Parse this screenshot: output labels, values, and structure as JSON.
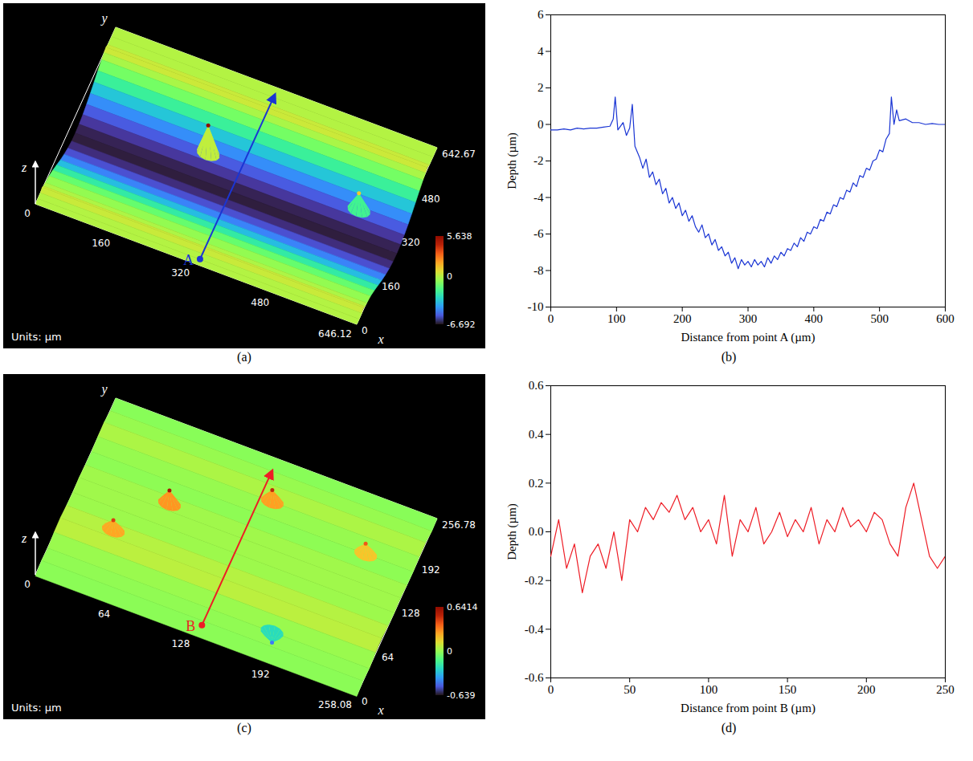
{
  "chart_data": [
    {
      "type": "surface3d",
      "label": "(a)",
      "xlabel": "x",
      "ylabel": "y",
      "zlabel": "z",
      "xlim": [
        0,
        646.12
      ],
      "xticks": [
        0,
        160,
        320,
        480,
        646.12
      ],
      "ylim": [
        0,
        642.67
      ],
      "yticks": [
        0,
        160,
        320,
        480,
        642.67
      ],
      "units_text": "Units: µm",
      "colorbar": {
        "range": [
          -6.692,
          5.638
        ],
        "ticks": [
          5.638,
          0,
          -6.692
        ]
      },
      "surface_profile": {
        "y": [
          0,
          20,
          40,
          55,
          65,
          80,
          110,
          140,
          170,
          200,
          230,
          260,
          290,
          320,
          350,
          380,
          410,
          440,
          470,
          500,
          530,
          550,
          565,
          580,
          610,
          642.67
        ],
        "z": [
          0,
          -0.1,
          0,
          0.6,
          0,
          -0.3,
          -0.8,
          -1.8,
          -3.0,
          -4.2,
          -5.2,
          -6.0,
          -6.5,
          -6.6,
          -6.3,
          -5.8,
          -5.0,
          -4.0,
          -2.8,
          -1.6,
          -0.5,
          0.1,
          0.6,
          0,
          -0.1,
          0
        ]
      },
      "features": [
        {
          "x": 247,
          "y": 400,
          "z": 5.6
        },
        {
          "x": 550,
          "y": 400,
          "z": 1.2
        }
      ],
      "marker_point": {
        "name": "A",
        "x": 326,
        "y0": 20,
        "y1": 620,
        "color": "#1a35d4"
      }
    },
    {
      "type": "line",
      "label": "(b)",
      "xlabel": "Distance from point A (µm)",
      "ylabel": "Depth (µm)",
      "xlim": [
        0,
        600
      ],
      "xticks": [
        0,
        100,
        200,
        300,
        400,
        500,
        600
      ],
      "ylim": [
        -10,
        6
      ],
      "yticks": [
        -10,
        -8,
        -6,
        -4,
        -2,
        0,
        2,
        4,
        6
      ],
      "grid": false,
      "color": "#1a35d4",
      "x": [
        0,
        10,
        20,
        30,
        40,
        50,
        60,
        70,
        80,
        90,
        95,
        98,
        102,
        110,
        115,
        120,
        124,
        128,
        135,
        140,
        145,
        150,
        155,
        160,
        165,
        170,
        175,
        180,
        185,
        190,
        195,
        200,
        205,
        210,
        215,
        220,
        225,
        230,
        235,
        240,
        245,
        250,
        255,
        260,
        265,
        270,
        275,
        280,
        285,
        290,
        295,
        300,
        305,
        310,
        315,
        320,
        325,
        330,
        335,
        340,
        345,
        350,
        355,
        360,
        365,
        370,
        375,
        380,
        385,
        390,
        395,
        400,
        405,
        410,
        415,
        420,
        425,
        430,
        435,
        440,
        445,
        450,
        455,
        460,
        465,
        470,
        475,
        480,
        485,
        490,
        495,
        500,
        505,
        510,
        515,
        518,
        522,
        526,
        530,
        540,
        550,
        560,
        570,
        580,
        590,
        600
      ],
      "values": [
        -0.3,
        -0.3,
        -0.25,
        -0.3,
        -0.2,
        -0.25,
        -0.2,
        -0.2,
        -0.15,
        -0.1,
        0.3,
        1.5,
        -0.3,
        0.1,
        -0.6,
        -0.2,
        1.1,
        -1.2,
        -1.8,
        -2.4,
        -1.9,
        -2.9,
        -2.6,
        -3.3,
        -3.0,
        -3.8,
        -3.5,
        -4.3,
        -4.0,
        -4.6,
        -4.3,
        -5.0,
        -4.7,
        -5.3,
        -5.0,
        -5.6,
        -5.9,
        -5.5,
        -6.2,
        -6.0,
        -6.6,
        -6.3,
        -6.9,
        -6.7,
        -7.2,
        -7.0,
        -7.6,
        -7.3,
        -7.9,
        -7.4,
        -7.7,
        -7.5,
        -7.8,
        -7.4,
        -7.7,
        -7.5,
        -7.8,
        -7.3,
        -7.6,
        -7.2,
        -7.4,
        -7.0,
        -7.2,
        -6.8,
        -6.9,
        -6.5,
        -6.7,
        -6.2,
        -6.4,
        -5.9,
        -6.0,
        -5.6,
        -5.7,
        -5.2,
        -5.3,
        -4.8,
        -4.9,
        -4.4,
        -4.5,
        -4.0,
        -4.1,
        -3.6,
        -3.7,
        -3.2,
        -3.4,
        -2.8,
        -2.9,
        -2.4,
        -2.5,
        -2.0,
        -1.9,
        -1.4,
        -1.5,
        -0.8,
        -0.5,
        1.5,
        0.0,
        0.8,
        0.2,
        0.3,
        0.1,
        0.1,
        0.0,
        0.05,
        0.0,
        0.0
      ]
    },
    {
      "type": "surface3d",
      "label": "(c)",
      "xlabel": "x",
      "ylabel": "y",
      "zlabel": "z",
      "xlim": [
        0,
        258.08
      ],
      "xticks": [
        0,
        64,
        128,
        192,
        258.08
      ],
      "ylim": [
        0,
        256.78
      ],
      "yticks": [
        0,
        64,
        128,
        192,
        256.78
      ],
      "units_text": "Units: µm",
      "colorbar": {
        "range": [
          -0.639,
          0.6414
        ],
        "ticks": [
          0.6414,
          0,
          -0.639
        ]
      },
      "surface_profile": {
        "y": [
          0,
          20,
          40,
          60,
          80,
          100,
          120,
          140,
          160,
          180,
          200,
          220,
          240,
          256.78
        ],
        "z": [
          -0.05,
          0.02,
          -0.03,
          0.05,
          0.08,
          0.03,
          0.0,
          0.04,
          0.0,
          -0.02,
          0.03,
          0.05,
          -0.04,
          0.0
        ]
      },
      "features": [
        {
          "x": 70,
          "y": 150,
          "z": 0.55
        },
        {
          "x": 140,
          "y": 200,
          "z": 0.5
        },
        {
          "x": 40,
          "y": 90,
          "z": 0.45
        },
        {
          "x": 220,
          "y": 180,
          "z": 0.4
        },
        {
          "x": 180,
          "y": 40,
          "z": -0.45
        }
      ],
      "marker_point": {
        "name": "B",
        "x": 130,
        "y0": 15,
        "y1": 240,
        "color": "#ee1c25"
      }
    },
    {
      "type": "line",
      "label": "(d)",
      "xlabel": "Distance from point B (µm)",
      "ylabel": "Depth (µm)",
      "xlim": [
        0,
        250
      ],
      "xticks": [
        0,
        50,
        100,
        150,
        200,
        250
      ],
      "ylim": [
        -0.6,
        0.6
      ],
      "yticks": [
        -0.6,
        -0.4,
        -0.2,
        {
          "value": 0,
          "label": "0.0"
        },
        0.2,
        0.4,
        0.6
      ],
      "grid": false,
      "color": "#ee1c25",
      "x": [
        0,
        5,
        10,
        15,
        20,
        25,
        30,
        35,
        40,
        45,
        50,
        55,
        60,
        65,
        70,
        75,
        80,
        85,
        90,
        95,
        100,
        105,
        110,
        115,
        120,
        125,
        130,
        135,
        140,
        145,
        150,
        155,
        160,
        165,
        170,
        175,
        180,
        185,
        190,
        195,
        200,
        205,
        210,
        215,
        220,
        225,
        230,
        235,
        240,
        245,
        250
      ],
      "values": [
        -0.1,
        0.05,
        -0.15,
        -0.05,
        -0.25,
        -0.1,
        -0.05,
        -0.15,
        0.0,
        -0.2,
        0.05,
        0.0,
        0.1,
        0.05,
        0.12,
        0.08,
        0.15,
        0.05,
        0.1,
        0.0,
        0.05,
        -0.05,
        0.15,
        -0.1,
        0.05,
        0.0,
        0.1,
        -0.05,
        0.0,
        0.08,
        -0.02,
        0.05,
        0.0,
        0.1,
        -0.05,
        0.05,
        0.0,
        0.1,
        0.02,
        0.05,
        0.0,
        0.08,
        0.05,
        -0.05,
        -0.1,
        0.1,
        0.2,
        0.05,
        -0.1,
        -0.15,
        -0.1
      ]
    }
  ]
}
